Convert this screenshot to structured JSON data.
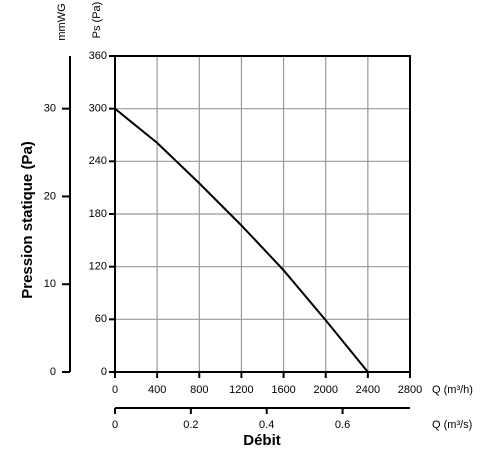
{
  "chart_data": {
    "type": "line",
    "ylabel": "Pression statique (Pa)",
    "y_unit": "Ps (Pa)",
    "y2_unit": "mmWG",
    "xlabel": "Débit",
    "x_unit": "Q (m³/h)",
    "x2_unit": "Q (m³/s)",
    "x": [
      0,
      400,
      800,
      1200,
      1600,
      2000,
      2400
    ],
    "series": [
      {
        "color": "#000000",
        "values": [
          300,
          261,
          215,
          167,
          116,
          59,
          0
        ]
      }
    ],
    "xlim": [
      0,
      2800
    ],
    "xticks": [
      0,
      400,
      800,
      1200,
      1600,
      2000,
      2400,
      2800
    ],
    "ylim": [
      0,
      360
    ],
    "yticks": [
      0,
      60,
      120,
      180,
      240,
      300,
      360
    ],
    "y2lim": [
      0,
      36
    ],
    "y2ticks": [
      0,
      10,
      20,
      30
    ],
    "x2lim": [
      0,
      0.7778
    ],
    "x2ticks": [
      0,
      0.2,
      0.4,
      0.6
    ],
    "grid": true
  }
}
